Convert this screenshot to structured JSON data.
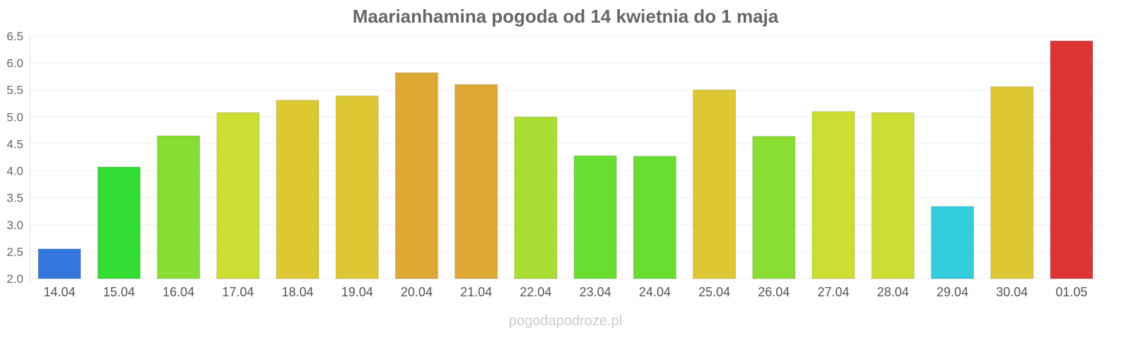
{
  "chart_data": {
    "type": "bar",
    "title": "Maarianhamina pogoda od 14 kwietnia do 1 maja",
    "xlabel": "",
    "ylabel": "",
    "ylim": [
      2.0,
      6.5
    ],
    "yticks": [
      "2.0",
      "2.5",
      "3.0",
      "3.5",
      "4.0",
      "4.5",
      "5.0",
      "5.5",
      "6.0",
      "6.5"
    ],
    "grid": true,
    "categories": [
      "14.04",
      "15.04",
      "16.04",
      "17.04",
      "18.04",
      "19.04",
      "20.04",
      "21.04",
      "22.04",
      "23.04",
      "24.04",
      "25.04",
      "26.04",
      "27.04",
      "28.04",
      "29.04",
      "30.04",
      "01.05"
    ],
    "values": [
      2.55,
      4.07,
      4.65,
      5.08,
      5.31,
      5.39,
      5.82,
      5.6,
      5.0,
      4.28,
      4.27,
      5.5,
      4.64,
      5.1,
      5.08,
      3.34,
      5.56,
      6.41
    ],
    "colors": [
      "#3377dd",
      "#33dd33",
      "#88dd33",
      "#ccdd33",
      "#ddc833",
      "#ddc833",
      "#dda833",
      "#dda833",
      "#aadd33",
      "#6add33",
      "#6add33",
      "#ddc833",
      "#8add33",
      "#ccdd33",
      "#ccdd33",
      "#33ccdd",
      "#ddc833",
      "#dd3333"
    ]
  },
  "watermark": "pogodapodroze.pl"
}
